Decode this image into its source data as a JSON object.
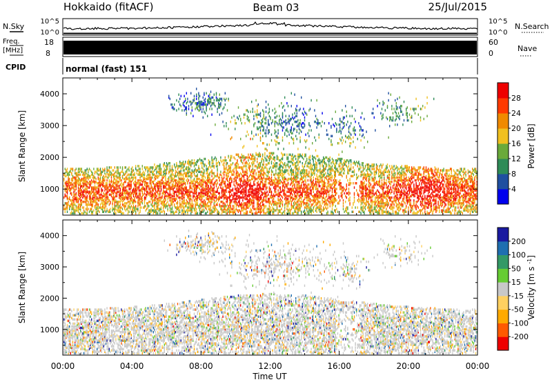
{
  "header": {
    "title": "Hokkaido (fitACF)",
    "beam": "Beam 03",
    "date": "25/Jul/2015"
  },
  "strip_nsky": {
    "label": "N.Sky",
    "right_label": "N.Search",
    "top_tick": "10^5",
    "bottom_tick": "10^0"
  },
  "strip_freq": {
    "label_line1": "Freq.",
    "label_line2": "[MHz]",
    "top_tick": "18",
    "bottom_tick": "8",
    "right_label": "Nave",
    "right_top_tick": "60",
    "right_bottom_tick": "0"
  },
  "strip_cpid": {
    "label": "CPID",
    "value": "normal (fast) 151"
  },
  "colors": {
    "power": [
      "#0000ee",
      "#1f4fa0",
      "#2e8b57",
      "#6aaa3a",
      "#f0c020",
      "#f08a00",
      "#ff3a00",
      "#ee0000"
    ],
    "velocity": [
      "#ee0000",
      "#ff5a00",
      "#ffaa00",
      "#ffd060",
      "#c8c8c8",
      "#66cc33",
      "#339966",
      "#1f6fb0",
      "#1a1aa0"
    ]
  },
  "chart_data": [
    {
      "type": "heatmap",
      "name": "power",
      "ylabel": "Slant Range [km]",
      "yticks": [
        "1000",
        "2000",
        "3000",
        "4000"
      ],
      "yrange_km": [
        180,
        4500
      ],
      "colorbar_label": "Power [dB]",
      "colorbar_ticks": [
        "4",
        "8",
        "12",
        "16",
        "20",
        "24",
        "28"
      ],
      "colorbar_range": [
        0,
        32
      ]
    },
    {
      "type": "heatmap",
      "name": "velocity",
      "ylabel": "Slant Range [km]",
      "yticks": [
        "1000",
        "2000",
        "3000",
        "4000"
      ],
      "yrange_km": [
        180,
        4500
      ],
      "colorbar_label": "Velocity [m s^-1]",
      "colorbar_ticks": [
        "-200",
        "-100",
        "-50",
        "-15",
        "15",
        "50",
        "100",
        "200"
      ],
      "colorbar_range": [
        -250,
        250
      ]
    }
  ],
  "xaxis": {
    "label": "Time UT",
    "ticks": [
      "00:00",
      "04:00",
      "08:00",
      "12:00",
      "16:00",
      "20:00",
      "00:00"
    ]
  }
}
